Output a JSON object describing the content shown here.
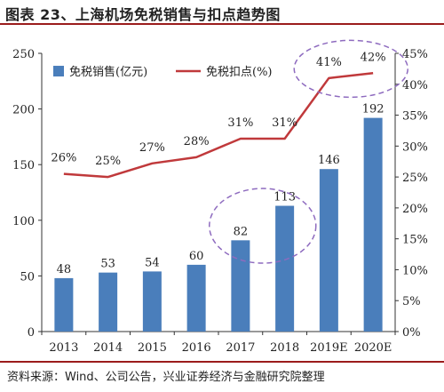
{
  "figure_title": "图表 23、上海机场免税销售与扣点趋势图",
  "source": "资料来源：Wind、公司公告，兴业证券经济与金融研究院整理",
  "colors": {
    "bar": "#4a7ebb",
    "line": "#c0393b",
    "circle": "#8e6bbf",
    "title_rule": "#9b1c1c"
  },
  "chart_data": {
    "type": "bar",
    "categories": [
      "2013",
      "2014",
      "2015",
      "2016",
      "2017",
      "2018",
      "2019E",
      "2020E"
    ],
    "series": [
      {
        "name": "免税销售(亿元)",
        "type": "bar",
        "axis": "left",
        "values": [
          48,
          53,
          54,
          60,
          82,
          113,
          146,
          192
        ],
        "labels": [
          "48",
          "53",
          "54",
          "60",
          "82",
          "113",
          "146",
          "192"
        ]
      },
      {
        "name": "免税扣点(%)",
        "type": "line",
        "axis": "right",
        "values": [
          25.5,
          25,
          27.2,
          28.2,
          31.2,
          31.2,
          41,
          41.8
        ],
        "labels": [
          "26%",
          "25%",
          "27%",
          "28%",
          "31%",
          "31%",
          "41%",
          "42%"
        ]
      }
    ],
    "y_left": {
      "min": 0,
      "max": 250,
      "ticks": [
        "0",
        "50",
        "100",
        "150",
        "200",
        "250"
      ]
    },
    "y_right": {
      "min": 0,
      "max": 45,
      "ticks": [
        "0%",
        "5%",
        "10%",
        "15%",
        "20%",
        "25%",
        "30%",
        "35%",
        "40%",
        "45%"
      ]
    },
    "legend_position": "top-left",
    "grid": false,
    "annotations": [
      "dashed ellipse around 2017–2018 bars",
      "dashed ellipse around 2019E–2020E line points"
    ]
  }
}
